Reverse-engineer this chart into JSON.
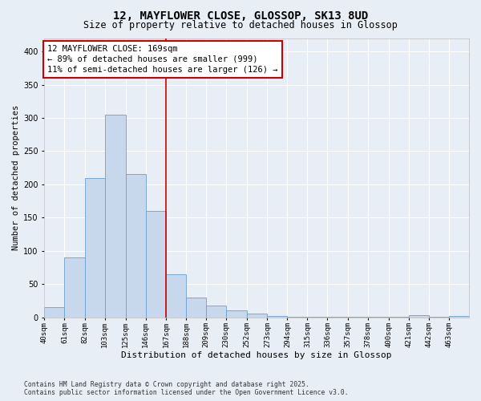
{
  "title": "12, MAYFLOWER CLOSE, GLOSSOP, SK13 8UD",
  "subtitle": "Size of property relative to detached houses in Glossop",
  "xlabel": "Distribution of detached houses by size in Glossop",
  "ylabel": "Number of detached properties",
  "bar_color": "#c8d8ec",
  "bar_edge_color": "#6b9fcf",
  "background_color": "#e8eef6",
  "fig_background_color": "#e8eef6",
  "grid_color": "#ffffff",
  "bins": [
    40,
    61,
    82,
    103,
    125,
    146,
    167,
    188,
    209,
    230,
    252,
    273,
    294,
    315,
    336,
    357,
    378,
    400,
    421,
    442,
    463,
    484
  ],
  "bin_labels": [
    "40sqm",
    "61sqm",
    "82sqm",
    "103sqm",
    "125sqm",
    "146sqm",
    "167sqm",
    "188sqm",
    "209sqm",
    "230sqm",
    "252sqm",
    "273sqm",
    "294sqm",
    "315sqm",
    "336sqm",
    "357sqm",
    "378sqm",
    "400sqm",
    "421sqm",
    "442sqm",
    "463sqm"
  ],
  "values": [
    15,
    90,
    210,
    305,
    215,
    160,
    65,
    30,
    18,
    10,
    6,
    2,
    1,
    1,
    1,
    1,
    1,
    1,
    3,
    1,
    2
  ],
  "vline_x": 167,
  "vline_color": "#cc0000",
  "annotation_box_color": "#cc0000",
  "annotation_text": "12 MAYFLOWER CLOSE: 169sqm\n← 89% of detached houses are smaller (999)\n11% of semi-detached houses are larger (126) →",
  "annotation_fontsize": 7.5,
  "ylim": [
    0,
    420
  ],
  "yticks": [
    0,
    50,
    100,
    150,
    200,
    250,
    300,
    350,
    400
  ],
  "footer_line1": "Contains HM Land Registry data © Crown copyright and database right 2025.",
  "footer_line2": "Contains public sector information licensed under the Open Government Licence v3.0.",
  "title_fontsize": 10,
  "subtitle_fontsize": 8.5,
  "xlabel_fontsize": 8,
  "ylabel_fontsize": 7.5,
  "tick_fontsize": 6.5
}
